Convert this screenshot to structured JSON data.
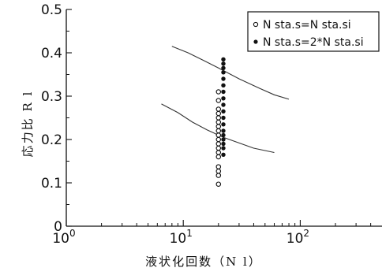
{
  "chart_data": {
    "type": "scatter",
    "xscale": "log",
    "xlim": [
      1,
      500
    ],
    "ylim": [
      0,
      0.5
    ],
    "xlabel": "液状化回数（N l）",
    "ylabel": "応力比 R l",
    "x_ticks": [
      {
        "value": 1,
        "base": "10",
        "exp": "0"
      },
      {
        "value": 10,
        "base": "10",
        "exp": "1"
      },
      {
        "value": 100,
        "base": "10",
        "exp": "2"
      }
    ],
    "y_ticks": [
      {
        "value": 0,
        "label": "0"
      },
      {
        "value": 0.1,
        "label": "0.1"
      },
      {
        "value": 0.2,
        "label": "0.2"
      },
      {
        "value": 0.3,
        "label": "0.3"
      },
      {
        "value": 0.4,
        "label": "0.4"
      },
      {
        "value": 0.5,
        "label": "0.5"
      }
    ],
    "legend_position": "top-right",
    "series": [
      {
        "name": "N sta.s=N sta.si",
        "marker": "open-circle",
        "points": [
          [
            20,
            0.097
          ],
          [
            20,
            0.117
          ],
          [
            20,
            0.127
          ],
          [
            20,
            0.137
          ],
          [
            20,
            0.16
          ],
          [
            20,
            0.17
          ],
          [
            20,
            0.18
          ],
          [
            20,
            0.19
          ],
          [
            20,
            0.2
          ],
          [
            20,
            0.21
          ],
          [
            20,
            0.22
          ],
          [
            20,
            0.23
          ],
          [
            20,
            0.24
          ],
          [
            20,
            0.25
          ],
          [
            20,
            0.26
          ],
          [
            20,
            0.27
          ],
          [
            20,
            0.29
          ],
          [
            20,
            0.31
          ]
        ]
      },
      {
        "name": "N sta.s=2*N sta.si",
        "marker": "filled-circle",
        "points": [
          [
            22,
            0.165
          ],
          [
            22,
            0.18
          ],
          [
            22,
            0.19
          ],
          [
            22,
            0.2
          ],
          [
            22,
            0.21
          ],
          [
            22,
            0.22
          ],
          [
            22,
            0.235
          ],
          [
            22,
            0.25
          ],
          [
            22,
            0.265
          ],
          [
            22,
            0.28
          ],
          [
            22,
            0.295
          ],
          [
            22,
            0.31
          ],
          [
            22,
            0.325
          ],
          [
            22,
            0.34
          ],
          [
            22,
            0.355
          ],
          [
            22,
            0.365
          ],
          [
            22,
            0.375
          ],
          [
            22,
            0.385
          ]
        ]
      }
    ],
    "curves": [
      {
        "points": [
          [
            8,
            0.415
          ],
          [
            11,
            0.4
          ],
          [
            15,
            0.382
          ],
          [
            20,
            0.365
          ],
          [
            30,
            0.34
          ],
          [
            45,
            0.318
          ],
          [
            60,
            0.303
          ],
          [
            80,
            0.293
          ]
        ]
      },
      {
        "points": [
          [
            6.5,
            0.282
          ],
          [
            9,
            0.262
          ],
          [
            12,
            0.24
          ],
          [
            16,
            0.222
          ],
          [
            22,
            0.205
          ],
          [
            30,
            0.192
          ],
          [
            40,
            0.18
          ],
          [
            60,
            0.17
          ]
        ]
      }
    ]
  }
}
